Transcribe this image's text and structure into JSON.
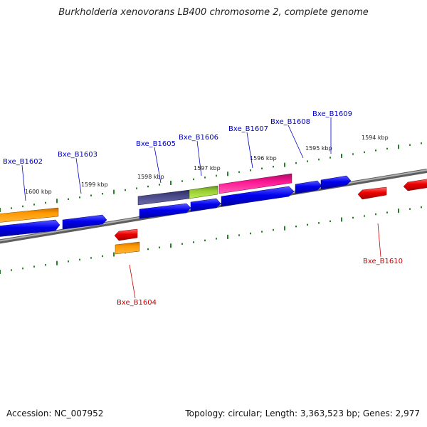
{
  "title": "Burkholderia xenovorans LB400 chromosome 2, complete genome",
  "footer": {
    "accession": "Accession: NC_007952",
    "summary": "Topology: circular; Length: 3,363,523 bp; Genes: 2,977"
  },
  "colors": {
    "backbone": "#808080",
    "tick": "#2e7d2e",
    "forward_gene": "#0000ee",
    "reverse_gene": "#ee0000",
    "label_forward": "#0000cc",
    "label_reverse": "#cc0000"
  },
  "scale_labels": [
    "1600 kbp",
    "1599 kbp",
    "1598 kbp",
    "1597 kbp",
    "1596 kbp",
    "1595 kbp",
    "1594 kbp"
  ],
  "gene_labels": [
    {
      "name": "Bxe_B1602",
      "strand": "forward"
    },
    {
      "name": "Bxe_B1603",
      "strand": "forward"
    },
    {
      "name": "Bxe_B1605",
      "strand": "forward"
    },
    {
      "name": "Bxe_B1606",
      "strand": "forward"
    },
    {
      "name": "Bxe_B1607",
      "strand": "forward"
    },
    {
      "name": "Bxe_B1608",
      "strand": "forward"
    },
    {
      "name": "Bxe_B1609",
      "strand": "forward"
    },
    {
      "name": "Bxe_B1604",
      "strand": "reverse"
    },
    {
      "name": "Bxe_B1610",
      "strand": "reverse"
    }
  ]
}
